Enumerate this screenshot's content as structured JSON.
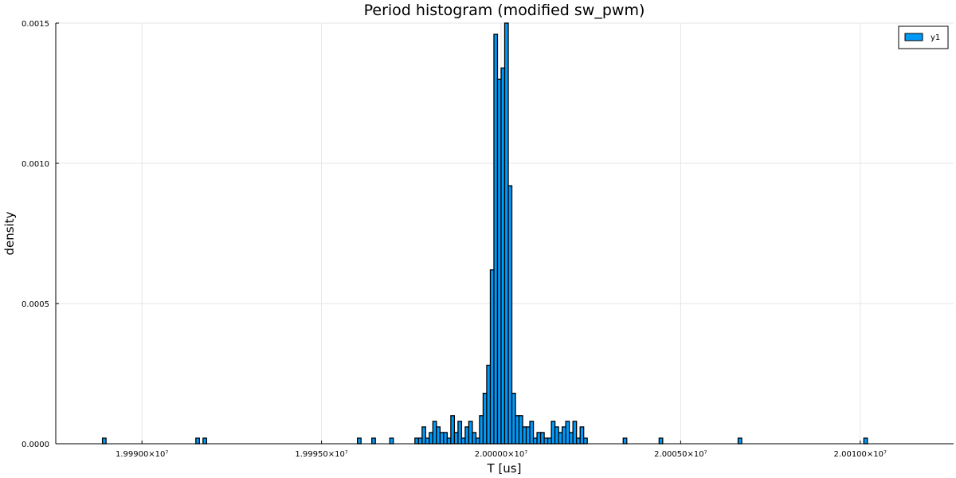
{
  "chart_data": {
    "type": "bar",
    "title": "Period histogram (modified sw_pwm)",
    "xlabel": "T [us]",
    "ylabel": "density",
    "xlim": [
      19998760,
      20001260
    ],
    "ylim": [
      0,
      0.0015
    ],
    "bin_width": 10,
    "x_ticks": [
      19999000,
      19999500,
      20000000,
      20000500,
      20001000
    ],
    "x_tick_labels": [
      "1.99900×10⁷",
      "1.99950×10⁷",
      "2.00000×10⁷",
      "2.00050×10⁷",
      "2.00100×10⁷"
    ],
    "y_ticks": [
      0,
      0.0005,
      0.001,
      0.0015
    ],
    "y_tick_labels": [
      "0.0000",
      "0.0005",
      "0.0010",
      "0.0015"
    ],
    "grid": true,
    "legend_position": "top-right",
    "series": [
      {
        "name": "y1",
        "color": "#009af9",
        "bins": [
          [
            19998890,
            2e-05
          ],
          [
            19999150,
            2e-05
          ],
          [
            19999170,
            2e-05
          ],
          [
            19999600,
            2e-05
          ],
          [
            19999640,
            2e-05
          ],
          [
            19999690,
            2e-05
          ],
          [
            19999760,
            2e-05
          ],
          [
            19999770,
            2e-05
          ],
          [
            19999780,
            6e-05
          ],
          [
            19999790,
            2e-05
          ],
          [
            19999800,
            4e-05
          ],
          [
            19999810,
            8e-05
          ],
          [
            19999820,
            6e-05
          ],
          [
            19999830,
            4e-05
          ],
          [
            19999840,
            4e-05
          ],
          [
            19999850,
            2e-05
          ],
          [
            19999860,
            0.0001
          ],
          [
            19999870,
            4e-05
          ],
          [
            19999880,
            8e-05
          ],
          [
            19999890,
            2e-05
          ],
          [
            19999900,
            6e-05
          ],
          [
            19999910,
            8e-05
          ],
          [
            19999920,
            4e-05
          ],
          [
            19999930,
            2e-05
          ],
          [
            19999940,
            0.0001
          ],
          [
            19999950,
            0.00018
          ],
          [
            19999960,
            0.00028
          ],
          [
            19999970,
            0.00062
          ],
          [
            19999980,
            0.00146
          ],
          [
            19999990,
            0.0013
          ],
          [
            20000000,
            0.00134
          ],
          [
            20000010,
            0.0015
          ],
          [
            20000020,
            0.00092
          ],
          [
            20000030,
            0.00018
          ],
          [
            20000040,
            0.0001
          ],
          [
            20000050,
            0.0001
          ],
          [
            20000060,
            6e-05
          ],
          [
            20000070,
            6e-05
          ],
          [
            20000080,
            8e-05
          ],
          [
            20000090,
            2e-05
          ],
          [
            20000100,
            4e-05
          ],
          [
            20000110,
            4e-05
          ],
          [
            20000120,
            2e-05
          ],
          [
            20000130,
            2e-05
          ],
          [
            20000140,
            8e-05
          ],
          [
            20000150,
            6e-05
          ],
          [
            20000160,
            4e-05
          ],
          [
            20000170,
            6e-05
          ],
          [
            20000180,
            8e-05
          ],
          [
            20000190,
            4e-05
          ],
          [
            20000200,
            8e-05
          ],
          [
            20000210,
            2e-05
          ],
          [
            20000220,
            6e-05
          ],
          [
            20000230,
            2e-05
          ],
          [
            20000340,
            2e-05
          ],
          [
            20000440,
            2e-05
          ],
          [
            20000660,
            2e-05
          ],
          [
            20001010,
            2e-05
          ]
        ]
      }
    ]
  }
}
